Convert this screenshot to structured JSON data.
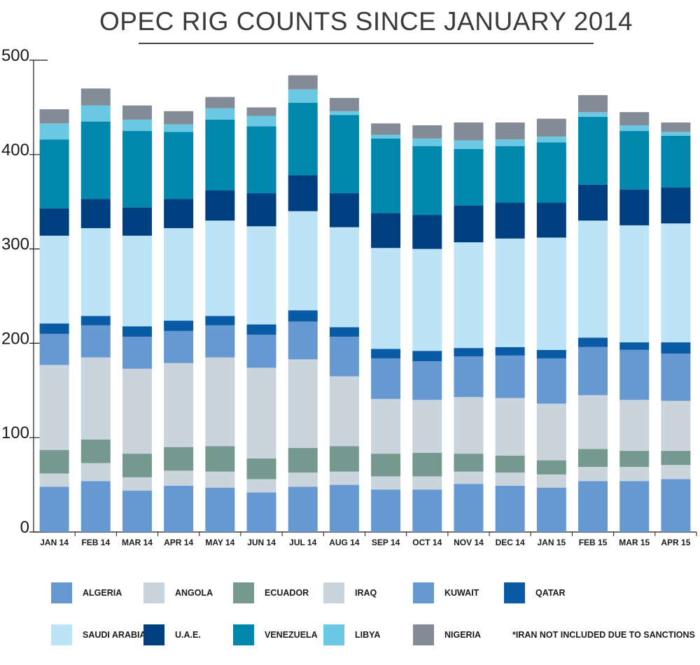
{
  "title": "OPEC RIG COUNTS SINCE JANUARY 2014",
  "footnote": "*IRAN NOT INCLUDED DUE TO SANCTIONS",
  "chart_data": {
    "type": "bar",
    "stacked": true,
    "title": "OPEC RIG COUNTS SINCE JANUARY 2014",
    "xlabel": "",
    "ylabel": "",
    "ylim": [
      0,
      500
    ],
    "yticks": [
      0,
      100,
      200,
      300,
      400,
      500
    ],
    "grid": false,
    "legend_position": "bottom",
    "categories": [
      "JAN 14",
      "FEB 14",
      "MAR 14",
      "APR 14",
      "MAY 14",
      "JUN 14",
      "JUL 14",
      "AUG 14",
      "SEP 14",
      "OCT 14",
      "NOV 14",
      "DEC 14",
      "JAN 15",
      "FEB 15",
      "MAR 15",
      "APR 15"
    ],
    "series": [
      {
        "name": "ALGERIA",
        "color": "#6699d1",
        "values": [
          48,
          54,
          44,
          49,
          47,
          42,
          48,
          50,
          45,
          45,
          51,
          49,
          47,
          54,
          54,
          56
        ]
      },
      {
        "name": "ANGOLA",
        "color": "#c9d4dd",
        "values": [
          14,
          19,
          14,
          16,
          17,
          14,
          15,
          14,
          14,
          14,
          13,
          14,
          14,
          15,
          15,
          15
        ]
      },
      {
        "name": "ECUADOR",
        "color": "#75998f",
        "values": [
          25,
          25,
          25,
          25,
          27,
          22,
          26,
          27,
          24,
          25,
          19,
          18,
          15,
          19,
          17,
          15
        ]
      },
      {
        "name": "IRAQ",
        "color": "#c9d4dd",
        "values": [
          90,
          87,
          90,
          89,
          94,
          96,
          94,
          74,
          58,
          56,
          60,
          61,
          60,
          57,
          54,
          53
        ]
      },
      {
        "name": "KUWAIT",
        "color": "#6699d1",
        "values": [
          33,
          34,
          34,
          34,
          34,
          35,
          40,
          42,
          43,
          41,
          43,
          45,
          48,
          51,
          53,
          50
        ]
      },
      {
        "name": "QATAR",
        "color": "#0a5ba6",
        "values": [
          11,
          10,
          11,
          11,
          10,
          11,
          12,
          10,
          10,
          11,
          9,
          9,
          9,
          10,
          8,
          12
        ]
      },
      {
        "name": "SAUDI ARABIA",
        "color": "#bde3f7",
        "values": [
          93,
          93,
          96,
          98,
          101,
          104,
          105,
          106,
          107,
          108,
          112,
          115,
          119,
          124,
          124,
          126
        ]
      },
      {
        "name": "U.A.E.",
        "color": "#003f7f",
        "values": [
          29,
          31,
          30,
          31,
          32,
          35,
          38,
          36,
          37,
          36,
          39,
          38,
          37,
          38,
          38,
          38
        ]
      },
      {
        "name": "VENEZUELA",
        "color": "#0087ad",
        "values": [
          73,
          82,
          81,
          71,
          75,
          71,
          77,
          83,
          79,
          73,
          60,
          60,
          64,
          72,
          62,
          55
        ]
      },
      {
        "name": "LIBYA",
        "color": "#6bc8e2",
        "values": [
          17,
          17,
          12,
          8,
          12,
          11,
          14,
          4,
          4,
          8,
          9,
          7,
          6,
          5,
          6,
          4
        ]
      },
      {
        "name": "NIGERIA",
        "color": "#838c96",
        "values": [
          15,
          18,
          15,
          14,
          12,
          9,
          15,
          14,
          12,
          14,
          19,
          18,
          19,
          18,
          14,
          10
        ]
      }
    ]
  },
  "legend": [
    {
      "label": "ALGERIA",
      "color": "#6699d1"
    },
    {
      "label": "ANGOLA",
      "color": "#c9d4dd"
    },
    {
      "label": "ECUADOR",
      "color": "#75998f"
    },
    {
      "label": "IRAQ",
      "color": "#c9d4dd"
    },
    {
      "label": "KUWAIT",
      "color": "#6699d1"
    },
    {
      "label": "QATAR",
      "color": "#0a5ba6"
    },
    {
      "label": "SAUDI ARABIA",
      "color": "#bde3f7"
    },
    {
      "label": "U.A.E.",
      "color": "#003f7f"
    },
    {
      "label": "VENEZUELA",
      "color": "#0087ad"
    },
    {
      "label": "LIBYA",
      "color": "#6bc8e2"
    },
    {
      "label": "NIGERIA",
      "color": "#838c96"
    }
  ]
}
